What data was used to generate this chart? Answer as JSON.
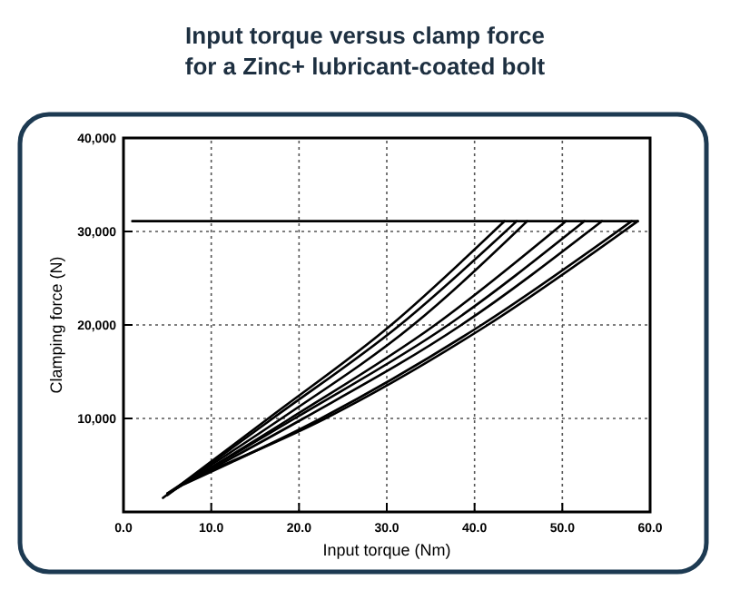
{
  "chart_data": {
    "type": "line",
    "title": "Input torque versus clamp force\nfor a Zinc+ lubricant-coated bolt",
    "xlabel": "Input torque (Nm)",
    "ylabel": "Clamping force (N)",
    "xlim": [
      0,
      60
    ],
    "xticks": [
      {
        "value": 0,
        "label": "0.0"
      },
      {
        "value": 10,
        "label": "10.0"
      },
      {
        "value": 20,
        "label": "20.0"
      },
      {
        "value": 30,
        "label": "30.0"
      },
      {
        "value": 40,
        "label": "40.0"
      },
      {
        "value": 50,
        "label": "50.0"
      },
      {
        "value": 60,
        "label": "60.0"
      }
    ],
    "ylim": [
      0,
      40000
    ],
    "yticks": [
      {
        "value": 10000,
        "label": "10,000"
      },
      {
        "value": 20000,
        "label": "20,000"
      },
      {
        "value": 30000,
        "label": "30,000"
      },
      {
        "value": 40000,
        "label": "40,000"
      }
    ],
    "grid": true,
    "marker": "none",
    "series": [
      {
        "color": "#000000",
        "x": [
          1,
          58.6
        ],
        "values": [
          31100,
          31100
        ]
      },
      {
        "color": "#000000",
        "x": [
          4.5,
          16.5,
          30.5,
          43.4
        ],
        "values": [
          1500,
          10000,
          20000,
          31100
        ]
      },
      {
        "color": "#000000",
        "x": [
          5,
          17,
          31.5,
          44.8
        ],
        "values": [
          1800,
          10000,
          20000,
          31100
        ]
      },
      {
        "color": "#000000",
        "x": [
          5,
          18,
          33,
          46
        ],
        "values": [
          2000,
          10000,
          20000,
          31100
        ]
      },
      {
        "color": "#000000",
        "x": [
          5.5,
          19,
          35.5,
          50.4
        ],
        "values": [
          2200,
          10000,
          20000,
          31100
        ]
      },
      {
        "color": "#000000",
        "x": [
          6,
          19.5,
          37,
          52.5
        ],
        "values": [
          2500,
          10000,
          20000,
          31100
        ]
      },
      {
        "color": "#000000",
        "x": [
          6.5,
          20.5,
          38.5,
          54.5
        ],
        "values": [
          2800,
          10000,
          20000,
          31100
        ]
      },
      {
        "color": "#000000",
        "x": [
          7,
          22.5,
          40.8,
          57.9
        ],
        "values": [
          3000,
          10000,
          20000,
          31100
        ]
      },
      {
        "color": "#000000",
        "x": [
          7.5,
          23,
          41.5,
          58.6
        ],
        "values": [
          3500,
          10000,
          20000,
          31100
        ]
      }
    ]
  }
}
